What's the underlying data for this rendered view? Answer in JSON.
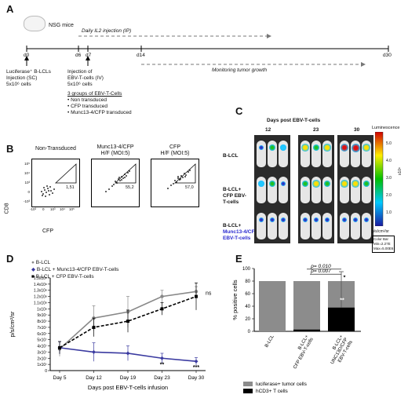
{
  "panel_labels": {
    "a": "A",
    "b": "B",
    "c": "C",
    "d": "D",
    "e": "E"
  },
  "panelA": {
    "mouse_label": "NSG mice",
    "il2_label": "Daily IL2 injection (IP)",
    "day_labels": [
      "d0",
      "d6",
      "d7",
      "d14",
      "d30"
    ],
    "monitor_label": "Monitoring tumor growth",
    "bcl_lines": [
      "Luciferase⁺ B-LCLs",
      "Injection (SC)",
      "5x10⁶ cells"
    ],
    "ebv_lines": [
      "Injection of",
      "EBV-T-cells (IV)",
      "5x10⁶ cells"
    ],
    "groups_title": "3 groups of EBV-T-Cells",
    "groups": [
      "Non transduced",
      "CFP transduced",
      "Munc13-4/CFP transduced"
    ]
  },
  "panelB": {
    "ylabel": "CD8",
    "xlabel": "CFP",
    "plots": [
      {
        "title": "Non-Transduced",
        "value": "1,51"
      },
      {
        "title": "Munc13-4/CFP\nH/F (MOI:5)",
        "value": "55,2"
      },
      {
        "title": "CFP\nH/F (MOI:5)",
        "value": "57,0"
      }
    ],
    "yticks": [
      "10⁵",
      "10⁴",
      "10³",
      "0",
      "-10³"
    ],
    "xticks": [
      "-10³",
      "0",
      "10³",
      "10⁴",
      "10⁵"
    ]
  },
  "panelC": {
    "header": "Days post EBV-T-cells",
    "days": [
      "12",
      "23",
      "30"
    ],
    "rows": [
      {
        "label": "B-LCL"
      },
      {
        "label": "B-LCL+\nCFP EBV-\nT-cells"
      },
      {
        "label_pre": "B-LCL+",
        "label_blue": "Munc13-4/CFP\nEBV-T-cells"
      }
    ],
    "colorbar_title": "Luminescence",
    "colorbar_ticks": [
      "5.0",
      "4.0",
      "3.0",
      "2.0",
      "1.0"
    ],
    "colorbar_exp": "x10⁶",
    "colorbar_unit": "p/s/cm²/sr",
    "colorbar_box": [
      "Color Bar",
      "Min=2.27E",
      "Max=5.00E6"
    ]
  },
  "chart_data": [
    {
      "type": "line",
      "ylabel": "p/s/cm²/sr",
      "xlabel": "Days post EBV-T-cells infusion",
      "categories": [
        "Day 5",
        "Day 12",
        "Day 19",
        "Day 23",
        "Day 30"
      ],
      "yticks": [
        "0",
        "1x10⁷",
        "2x10⁷",
        "3x10⁷",
        "4x10⁷",
        "5x10⁷",
        "6x10⁷",
        "7x10⁷",
        "8x10⁷",
        "9x10⁷",
        "1x10⁸",
        "1.1x10⁸",
        "1.2x10⁸",
        "1.3x10⁸",
        "1.4x10⁸",
        "1.5x10⁸"
      ],
      "ylim": [
        0,
        150000000
      ],
      "colors": {
        "blcl": "#888888",
        "munc": "#3a3aa0",
        "cfp": "#000000"
      },
      "series": [
        {
          "name": "B-LCL",
          "values": [
            35000000,
            85000000,
            95000000,
            120000000,
            128000000
          ],
          "errors": [
            12000000,
            20000000,
            25000000,
            10000000,
            8000000
          ]
        },
        {
          "name": "B-LCL + Munc13-4/CFP EBV-T-cells",
          "values": [
            37000000,
            30000000,
            28000000,
            20000000,
            15000000
          ],
          "errors": [
            10000000,
            15000000,
            12000000,
            8000000,
            6000000
          ]
        },
        {
          "name": "B-LCL + CFP EBV-T-cells",
          "values": [
            37000000,
            70000000,
            80000000,
            100000000,
            120000000
          ],
          "errors": [
            10000000,
            15000000,
            18000000,
            10000000,
            22000000
          ]
        }
      ],
      "annotations": [
        "**",
        "***",
        "ns"
      ]
    },
    {
      "type": "bar",
      "ylabel": "% positive cells",
      "categories": [
        "B-LCL",
        "B-LCL+\nCFP EBV-T-cells",
        "B-LCL+\nUNC13D/CFP\nEBV-T-cells"
      ],
      "yticks": [
        "0",
        "20",
        "40",
        "60",
        "80",
        "100"
      ],
      "ylim": [
        0,
        100
      ],
      "colors": {
        "tumor": "#8c8c8c",
        "tcell": "#000000"
      },
      "series": [
        {
          "name": "luciferase+ tumor cells",
          "values": [
            80,
            77,
            42
          ]
        },
        {
          "name": "hCD3+ T cells",
          "values": [
            0,
            3,
            38
          ]
        }
      ],
      "errors": [
        0,
        0,
        15
      ],
      "pvalues": [
        "p= 0.010",
        "p= 0.007"
      ],
      "stars": [
        "**",
        "*"
      ]
    }
  ]
}
